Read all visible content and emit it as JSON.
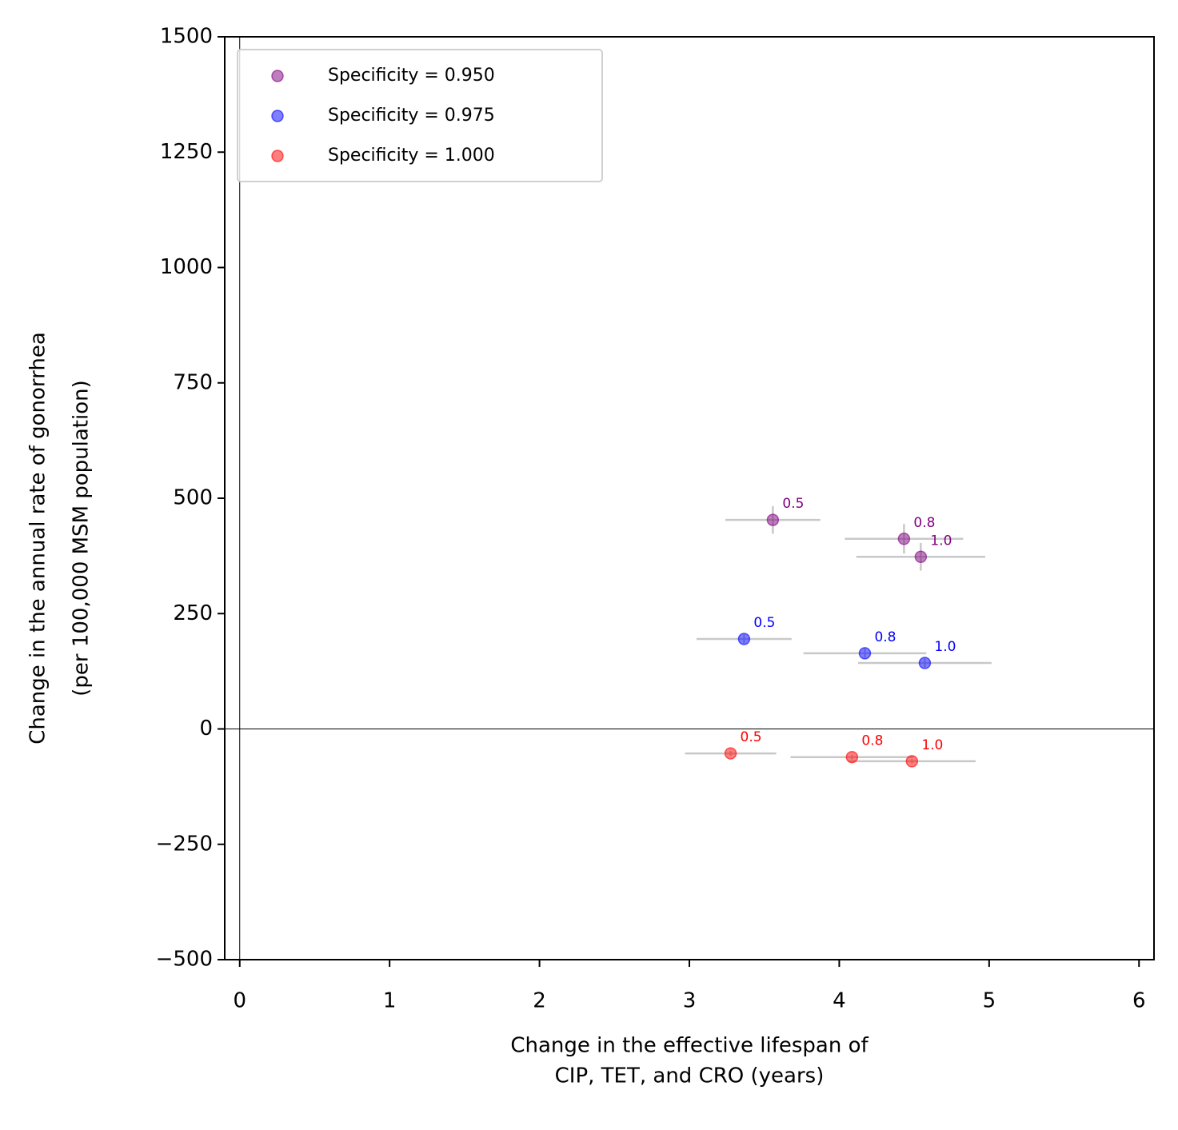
{
  "chart_data": {
    "type": "scatter",
    "xlabel": [
      "Change in the effective lifespan of",
      "CIP, TET, and CRO (years)"
    ],
    "ylabel": [
      "Change in the annual rate of gonorrhea",
      "(per 100,000 MSM population)"
    ],
    "xlim": [
      -0.1,
      6.1
    ],
    "ylim": [
      -500,
      1500
    ],
    "xticks": [
      0,
      1,
      2,
      3,
      4,
      5,
      6
    ],
    "yticks": [
      {
        "value": -500,
        "label": "−500"
      },
      {
        "value": -250,
        "label": "−250"
      },
      0,
      250,
      500,
      750,
      1000,
      1250,
      1500
    ],
    "zero_lines": true,
    "legend": "upper left",
    "errorbar_color": "#bbbbbb",
    "series": [
      {
        "name": "Specificity = 0.950",
        "color": "#800080",
        "x": [
          3.557,
          4.432,
          4.544
        ],
        "values": [
          453,
          412,
          373
        ],
        "x_err": [
          0.317,
          0.395,
          0.43
        ],
        "y_err": [
          30,
          32,
          30
        ],
        "point_labels": [
          "0.5",
          "0.8",
          "1.0"
        ]
      },
      {
        "name": "Specificity = 0.975",
        "color": "#0000ff",
        "x": [
          3.365,
          4.171,
          4.571
        ],
        "values": [
          195,
          164,
          143
        ],
        "x_err": [
          0.317,
          0.41,
          0.445
        ],
        "y_err": [
          10,
          10,
          10
        ],
        "point_labels": [
          "0.5",
          "0.8",
          "1.0"
        ]
      },
      {
        "name": "Specificity = 1.000",
        "color": "#ff0000",
        "x": [
          3.275,
          4.085,
          4.485
        ],
        "values": [
          -53,
          -61,
          -70
        ],
        "x_err": [
          0.304,
          0.41,
          0.425
        ],
        "y_err": [
          5,
          5,
          5
        ],
        "point_labels": [
          "0.5",
          "0.8",
          "1.0"
        ]
      }
    ]
  }
}
